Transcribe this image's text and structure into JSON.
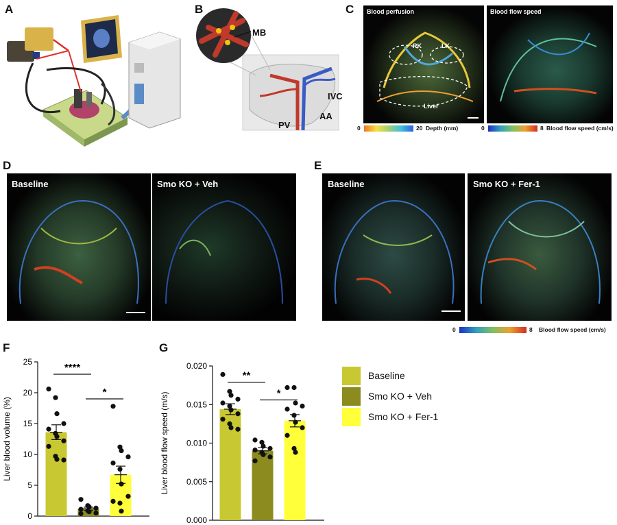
{
  "panels": {
    "a": "A",
    "b": "B",
    "c": "C",
    "d": "D",
    "e": "E",
    "f": "F",
    "g": "G"
  },
  "diagram_b": {
    "mb": "MB",
    "ivc": "IVC",
    "pv": "PV",
    "aa": "AA"
  },
  "panel_c": {
    "left_title": "Blood perfusion",
    "right_title": "Blood flow speed",
    "rk": "RK",
    "lk": "LK",
    "liver": "Liver",
    "depth_min": "0",
    "depth_max": "20",
    "depth_label": "Depth (mm)",
    "speed_min": "0",
    "speed_max": "8",
    "speed_label": "Blood flow speed (cm/s)"
  },
  "panel_d": {
    "left_title": "Baseline",
    "right_title": "Smo KO + Veh"
  },
  "panel_e": {
    "left_title": "Baseline",
    "right_title": "Smo KO + Fer-1",
    "speed_min": "0",
    "speed_max": "8",
    "speed_label": "Blood flow speed (cm/s)"
  },
  "legend": [
    "Baseline",
    "Smo KO + Veh",
    "Smo KO + Fer-1"
  ],
  "colors": {
    "baseline": "#c8c832",
    "veh": "#8b8b20",
    "fer1": "#ffff3a",
    "vessel_red": "#c0392b",
    "vessel_blue": "#3b5bc4"
  },
  "chart_data": [
    {
      "type": "bar",
      "panel": "F",
      "ylabel": "Liver blood volume (%)",
      "ylim": [
        0,
        25
      ],
      "yticks": [
        "0",
        "5",
        "10",
        "15",
        "20",
        "25"
      ],
      "categories": [
        "Baseline",
        "Smo KO + Veh",
        "Smo KO + Fer-1"
      ],
      "values": [
        13.6,
        1.2,
        6.7
      ],
      "sem": [
        1.2,
        0.25,
        1.4
      ],
      "points": [
        [
          20.6,
          19.2,
          16.6,
          15.0,
          14.1,
          13.4,
          12.9,
          12.2,
          11.3,
          9.7,
          9.2,
          9.1
        ],
        [
          2.7,
          1.7,
          1.5,
          1.3,
          1.1,
          0.9,
          0.7,
          0.5,
          0.4
        ],
        [
          17.8,
          11.2,
          10.6,
          9.6,
          8.6,
          7.6,
          5.2,
          3.2,
          2.4,
          2.1,
          0.8
        ]
      ],
      "significance": [
        {
          "label": "****",
          "from": 0,
          "to": 1,
          "y": 23.0
        },
        {
          "label": "*",
          "from": 1,
          "to": 2,
          "y": 19.0
        }
      ]
    },
    {
      "type": "bar",
      "panel": "G",
      "ylabel": "Liver blood flow speed (m/s)",
      "ylim": [
        0,
        0.02
      ],
      "yticks": [
        "0.000",
        "0.005",
        "0.010",
        "0.015",
        "0.020"
      ],
      "categories": [
        "Baseline",
        "Smo KO + Veh",
        "Smo KO + Fer-1"
      ],
      "values": [
        0.0144,
        0.009,
        0.0129
      ],
      "sem": [
        0.0007,
        0.0004,
        0.0008
      ],
      "points": [
        [
          0.0189,
          0.0167,
          0.0162,
          0.0157,
          0.0152,
          0.0148,
          0.0143,
          0.0138,
          0.0131,
          0.0125,
          0.012,
          0.0118
        ],
        [
          0.0104,
          0.0101,
          0.0096,
          0.0093,
          0.0091,
          0.0088,
          0.0085,
          0.0082,
          0.0077
        ],
        [
          0.0172,
          0.0172,
          0.0152,
          0.0148,
          0.0144,
          0.0136,
          0.0127,
          0.012,
          0.011,
          0.0093,
          0.0088
        ]
      ],
      "significance": [
        {
          "label": "**",
          "from": 0,
          "to": 1,
          "y": 0.0179
        },
        {
          "label": "*",
          "from": 1,
          "to": 2,
          "y": 0.0156
        }
      ]
    }
  ]
}
